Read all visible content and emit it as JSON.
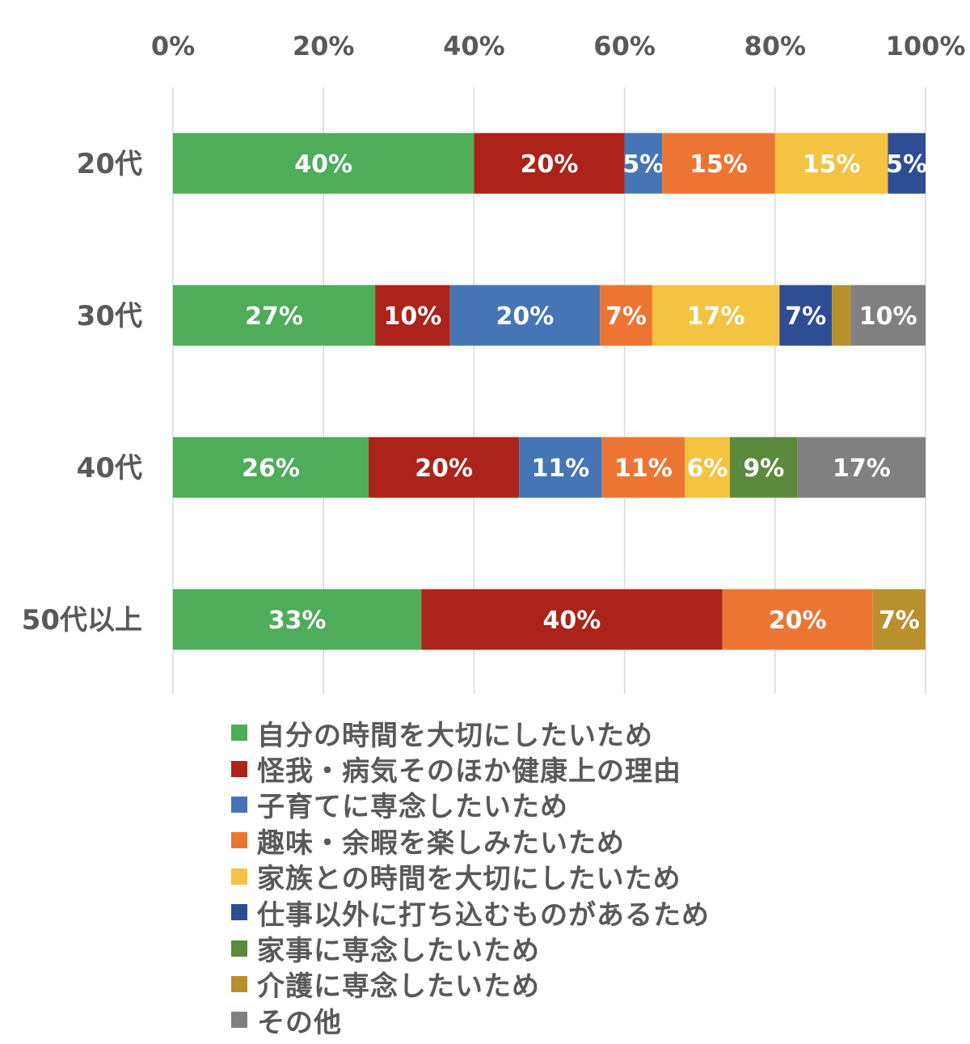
{
  "chart_data": {
    "type": "bar",
    "orientation": "horizontal",
    "stacked": "percent",
    "x_axis_position": "top",
    "xlim": [
      0,
      100
    ],
    "x_ticks": [
      "0%",
      "20%",
      "40%",
      "60%",
      "80%",
      "100%"
    ],
    "x_tick_values": [
      0,
      20,
      40,
      60,
      80,
      100
    ],
    "grid": true,
    "legend_position": "bottom",
    "categories": [
      "20代",
      "30代",
      "40代",
      "50代以上"
    ],
    "series": [
      {
        "name": "自分の時間を大切にしたいため",
        "color": "#4eac5b",
        "values": [
          40,
          27,
          26,
          33
        ],
        "labels": [
          "40%",
          "27%",
          "26%",
          "33%"
        ]
      },
      {
        "name": "怪我・病気そのほか健康上の理由",
        "color": "#ab2319",
        "values": [
          20,
          10,
          20,
          40
        ],
        "labels": [
          "20%",
          "10%",
          "20%",
          "40%"
        ]
      },
      {
        "name": "子育てに専念したいため",
        "color": "#4575b4",
        "values": [
          5,
          20,
          11,
          0
        ],
        "labels": [
          "5%",
          "20%",
          "11%",
          ""
        ]
      },
      {
        "name": "趣味・余暇を楽しみたいため",
        "color": "#ed7533",
        "values": [
          15,
          7,
          11,
          20
        ],
        "labels": [
          "15%",
          "7%",
          "11%",
          "20%"
        ]
      },
      {
        "name": "家族との時間を大切にしたいため",
        "color": "#f5c342",
        "values": [
          15,
          17,
          6,
          0
        ],
        "labels": [
          "15%",
          "17%",
          "6%",
          ""
        ]
      },
      {
        "name": "仕事以外に打ち込むものがあるため",
        "color": "#2e4d93",
        "values": [
          5,
          7,
          0,
          0
        ],
        "labels": [
          "5%",
          "7%",
          "",
          ""
        ]
      },
      {
        "name": "家事に専念したいため",
        "color": "#5c8a3c",
        "values": [
          0,
          0,
          9,
          0
        ],
        "labels": [
          "",
          "",
          "9%",
          ""
        ]
      },
      {
        "name": "介護に専念したいため",
        "color": "#b8912e",
        "values": [
          0,
          2.5,
          0,
          7
        ],
        "labels": [
          "",
          "",
          "",
          "7%"
        ]
      },
      {
        "name": "その他",
        "color": "#808080",
        "values": [
          0,
          10,
          17,
          0
        ],
        "labels": [
          "",
          "10%",
          "17%",
          ""
        ]
      }
    ]
  }
}
